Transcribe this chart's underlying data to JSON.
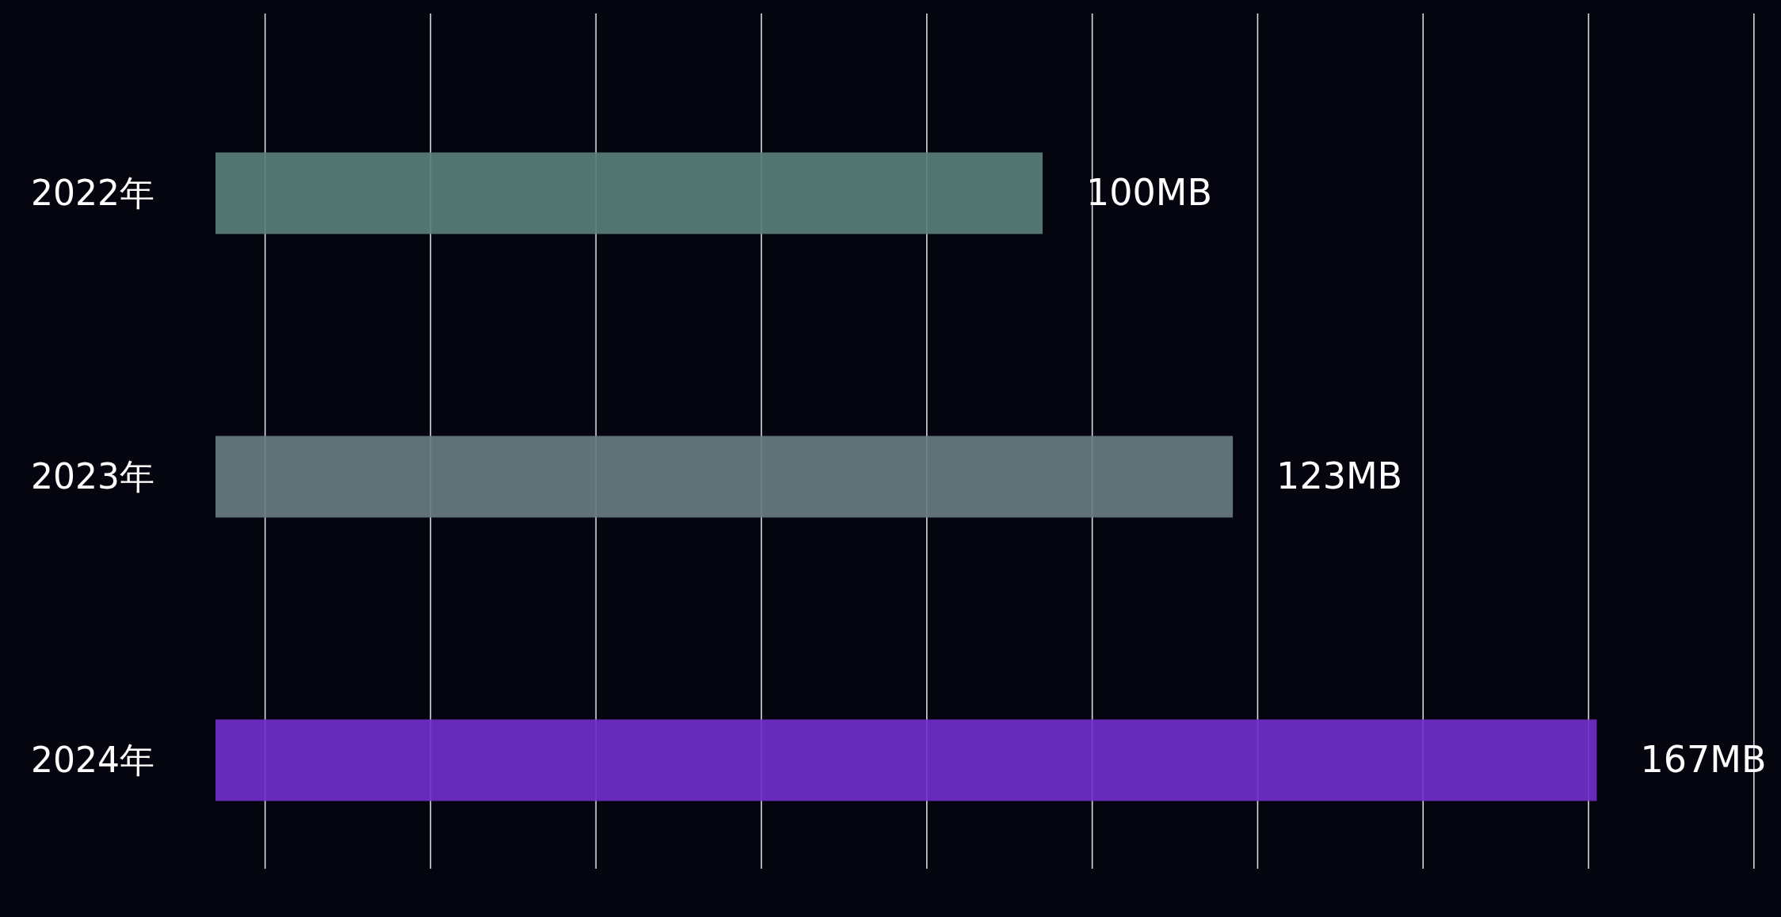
{
  "chart_data": {
    "type": "bar",
    "orientation": "horizontal",
    "categories": [
      "2022年",
      "2023年",
      "2024年"
    ],
    "values": [
      100,
      123,
      167
    ],
    "colors": [
      "#5a7f7a",
      "#687c80",
      "#6f2fc8"
    ],
    "value_labels": [
      "100MB",
      "123MB",
      "167MB"
    ],
    "xticks": [
      {
        "value": 6,
        "label": null
      },
      {
        "value": 26,
        "label": null
      },
      {
        "value": 46,
        "label": null
      },
      {
        "value": 66,
        "label": null
      },
      {
        "value": 86,
        "label": null
      },
      {
        "value": 106,
        "label": null
      },
      {
        "value": 126,
        "label": null
      },
      {
        "value": 146,
        "label": null
      },
      {
        "value": 166,
        "label": null
      },
      {
        "value": 186,
        "label": null
      }
    ],
    "grid": "x"
  }
}
